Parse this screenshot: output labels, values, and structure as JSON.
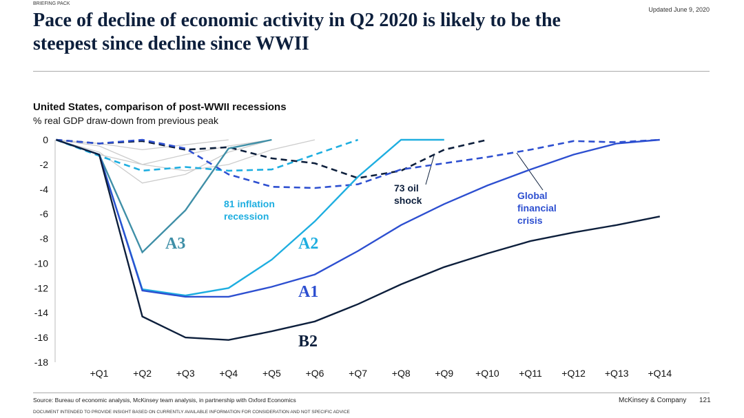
{
  "header": {
    "section": "BRIEFING PACK",
    "updated": "Updated June 9, 2020",
    "title": "Pace of decline of economic activity in Q2 2020 is likely to be the steepest since decline since WWII"
  },
  "chart_data": {
    "type": "line",
    "title": "United States, comparison of post-WWII recessions",
    "subtitle": "% real GDP draw-down from previous peak",
    "categories": [
      null,
      "+Q1",
      "+Q2",
      "+Q3",
      "+Q4",
      "+Q5",
      "+Q6",
      "+Q7",
      "+Q8",
      "+Q9",
      "+Q10",
      "+Q11",
      "+Q12",
      "+Q13",
      "+Q14"
    ],
    "ylim": [
      -18,
      0
    ],
    "yticks": [
      0,
      -2,
      -4,
      -6,
      -8,
      -10,
      -12,
      -14,
      -16,
      -18
    ],
    "series": [
      {
        "color": "#cccccc",
        "values": [
          0,
          -1.0,
          -3.5,
          -2.8,
          -1.0,
          0,
          null,
          null,
          null,
          null,
          null,
          null,
          null,
          null,
          null
        ]
      },
      {
        "color": "#cccccc",
        "values": [
          0,
          -0.5,
          -2.0,
          -1.2,
          -0.5,
          0,
          null,
          null,
          null,
          null,
          null,
          null,
          null,
          null,
          null
        ]
      },
      {
        "color": "#cccccc",
        "values": [
          0,
          -0.3,
          -0.8,
          -0.4,
          0,
          null,
          null,
          null,
          null,
          null,
          null,
          null,
          null,
          null,
          null
        ]
      },
      {
        "color": "#cccccc",
        "values": [
          0,
          -1.2,
          -2.0,
          -2.5,
          -2.0,
          -0.8,
          0,
          null,
          null,
          null,
          null,
          null,
          null,
          null,
          null
        ]
      },
      {
        "name": "81 inflation recession",
        "color": "#1eaee0",
        "dashed": true,
        "values": [
          0,
          -1.3,
          -2.5,
          -2.2,
          -2.5,
          -2.4,
          -1.2,
          0,
          null,
          null,
          null,
          null,
          null,
          null,
          null
        ]
      },
      {
        "name": "73 oil shock",
        "color": "#0d1f3c",
        "dashed": true,
        "values": [
          0,
          -0.3,
          -0.1,
          -0.8,
          -0.6,
          -1.5,
          -1.9,
          -3.1,
          -2.5,
          -0.8,
          0,
          null,
          null,
          null,
          null
        ]
      },
      {
        "name": "Global financial crisis",
        "color": "#2d4fd0",
        "dashed": true,
        "values": [
          0,
          -0.3,
          0,
          -0.7,
          -2.8,
          -3.8,
          -3.9,
          -3.6,
          -2.4,
          -1.9,
          -1.4,
          -0.8,
          -0.1,
          -0.2,
          0
        ]
      },
      {
        "name": "A3",
        "color": "#3f8fa7",
        "values": [
          0,
          -1.2,
          -9.1,
          -5.7,
          -0.7,
          0,
          null,
          null,
          null,
          null,
          null,
          null,
          null,
          null,
          null
        ]
      },
      {
        "name": "A2",
        "color": "#1eaee0",
        "values": [
          0,
          -1.2,
          -12.1,
          -12.6,
          -12.0,
          -9.7,
          -6.6,
          -3.0,
          0,
          0,
          null,
          null,
          null,
          null,
          null
        ]
      },
      {
        "name": "A1",
        "color": "#2d4fd0",
        "values": [
          0,
          -1.2,
          -12.2,
          -12.7,
          -12.7,
          -11.9,
          -10.9,
          -9.0,
          -6.9,
          -5.2,
          -3.7,
          -2.4,
          -1.2,
          -0.3,
          0
        ]
      },
      {
        "name": "B2",
        "color": "#0d1f3c",
        "values": [
          0,
          -1.2,
          -14.3,
          -16.0,
          -16.2,
          -15.5,
          -14.7,
          -13.3,
          -11.7,
          -10.3,
          -9.2,
          -8.2,
          -7.5,
          -6.9,
          -6.2
        ]
      }
    ]
  },
  "footer": {
    "source": "Source: Bureau of economic analysis, McKinsey team analysis, in partnership with Oxford Economics",
    "company": "McKinsey & Company",
    "page": "121",
    "disclaimer": "DOCUMENT INTENDED TO PROVIDE INSIGHT BASED ON CURRENTLY AVAILABLE INFORMATION FOR CONSIDERATION AND NOT SPECIFIC ADVICE"
  }
}
